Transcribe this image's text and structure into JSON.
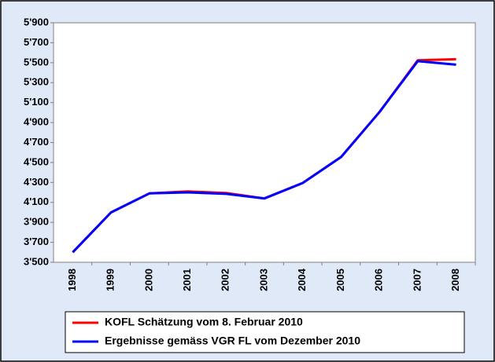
{
  "chart_data": {
    "type": "line",
    "categories": [
      "1998",
      "1999",
      "2000",
      "2001",
      "2002",
      "2003",
      "2004",
      "2005",
      "2006",
      "2007",
      "2008"
    ],
    "series": [
      {
        "name": "KOFL Schätzung vom 8. Februar 2010",
        "color": "#ff0000",
        "values": [
          3600,
          4000,
          4190,
          4210,
          4195,
          4140,
          4295,
          4555,
          5005,
          5525,
          5535
        ]
      },
      {
        "name": "Ergebnisse gemäss VGR FL vom Dezember 2010",
        "color": "#0000ff",
        "values": [
          3600,
          4000,
          4190,
          4200,
          4185,
          4140,
          4295,
          4555,
          5005,
          5515,
          5480
        ]
      }
    ],
    "ylim": [
      3500,
      5900
    ],
    "yticks": [
      {
        "value": 3500,
        "label": "3'500"
      },
      {
        "value": 3700,
        "label": "3'700"
      },
      {
        "value": 3900,
        "label": "3'900"
      },
      {
        "value": 4100,
        "label": "4'100"
      },
      {
        "value": 4300,
        "label": "4'300"
      },
      {
        "value": 4500,
        "label": "4'500"
      },
      {
        "value": 4700,
        "label": "4'700"
      },
      {
        "value": 4900,
        "label": "4'900"
      },
      {
        "value": 5100,
        "label": "5'100"
      },
      {
        "value": 5300,
        "label": "5'300"
      },
      {
        "value": 5500,
        "label": "5'500"
      },
      {
        "value": 5700,
        "label": "5'700"
      },
      {
        "value": 5900,
        "label": "5'900"
      }
    ],
    "grid": false,
    "legend": "bottom"
  }
}
